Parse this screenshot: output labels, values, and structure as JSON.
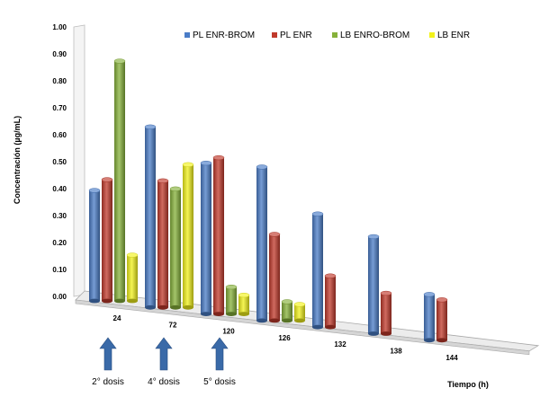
{
  "chart_data": {
    "type": "bar",
    "ylabel": "Concentración (µg/mL)",
    "xlabel": "Tiempo (h)",
    "ylim": [
      0,
      1
    ],
    "yticks": [
      "0.00",
      "0.10",
      "0.20",
      "0.30",
      "0.40",
      "0.50",
      "0.60",
      "0.70",
      "0.80",
      "0.90",
      "1.00"
    ],
    "categories": [
      "24",
      "72",
      "120",
      "126",
      "132",
      "138",
      "144"
    ],
    "legend_position": "top-right",
    "grid": false,
    "series": [
      {
        "name": "PL ENR-BROM",
        "color": "#4a7cc7",
        "values": [
          0.41,
          0.67,
          0.56,
          0.57,
          0.42,
          0.36,
          0.17
        ]
      },
      {
        "name": "PL ENR",
        "color": "#c0392b",
        "values": [
          0.45,
          0.47,
          0.58,
          0.32,
          0.19,
          0.15,
          0.15
        ]
      },
      {
        "name": "LB ENRO-BROM",
        "color": "#86b13a",
        "values": [
          0.89,
          0.44,
          0.1,
          0.07,
          null,
          null,
          null
        ]
      },
      {
        "name": "LB ENR",
        "color": "#f2f21b",
        "values": [
          0.17,
          0.53,
          0.07,
          0.06,
          null,
          null,
          null
        ]
      }
    ]
  },
  "annotations": {
    "dose_arrow_color": "#3a6aa8",
    "doses": [
      {
        "label": "2° dosis",
        "category_index": 0
      },
      {
        "label": "4° dosis",
        "category_index": 1
      },
      {
        "label": "5° dosis",
        "category_index": 2
      }
    ]
  }
}
